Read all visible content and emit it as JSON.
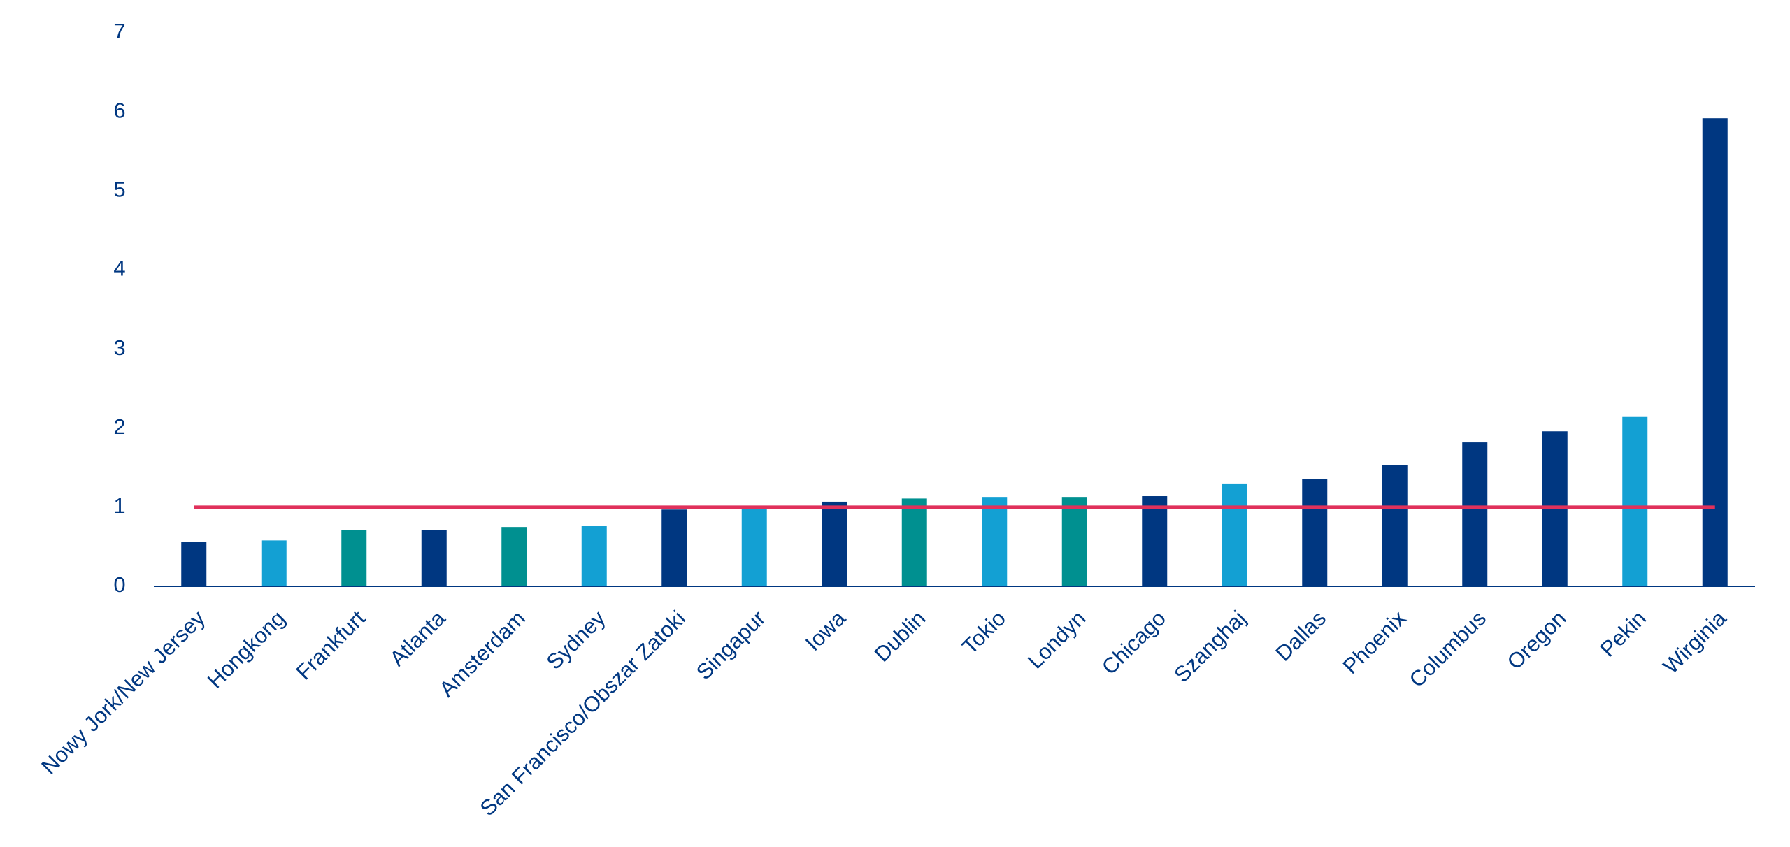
{
  "chart_data": {
    "type": "bar",
    "categories": [
      "Nowy Jork/New Jersey",
      "Hongkong",
      "Frankfurt",
      "Atlanta",
      "Amsterdam",
      "Sydney",
      "San Francisco/Obszar Zatoki",
      "Singapur",
      "Iowa",
      "Dublin",
      "Tokio",
      "Londyn",
      "Chicago",
      "Szanghaj",
      "Dallas",
      "Phoenix",
      "Columbus",
      "Oregon",
      "Pekin",
      "Wirginia"
    ],
    "values": [
      0.56,
      0.58,
      0.71,
      0.71,
      0.75,
      0.76,
      0.97,
      1.0,
      1.07,
      1.11,
      1.13,
      1.13,
      1.14,
      1.3,
      1.36,
      1.53,
      1.82,
      1.96,
      2.15,
      5.92
    ],
    "colors": [
      "#003781",
      "#13a0d3",
      "#009090",
      "#003781",
      "#009090",
      "#13a0d3",
      "#003781",
      "#13a0d3",
      "#003781",
      "#009090",
      "#13a0d3",
      "#009090",
      "#003781",
      "#13a0d3",
      "#003781",
      "#003781",
      "#003781",
      "#003781",
      "#13a0d3",
      "#003781"
    ],
    "reference_line": {
      "value": 1,
      "color": "#e0315b"
    },
    "ylim": [
      0,
      7
    ],
    "yticks": [
      0,
      1,
      2,
      3,
      4,
      5,
      6,
      7
    ],
    "grid": false
  }
}
